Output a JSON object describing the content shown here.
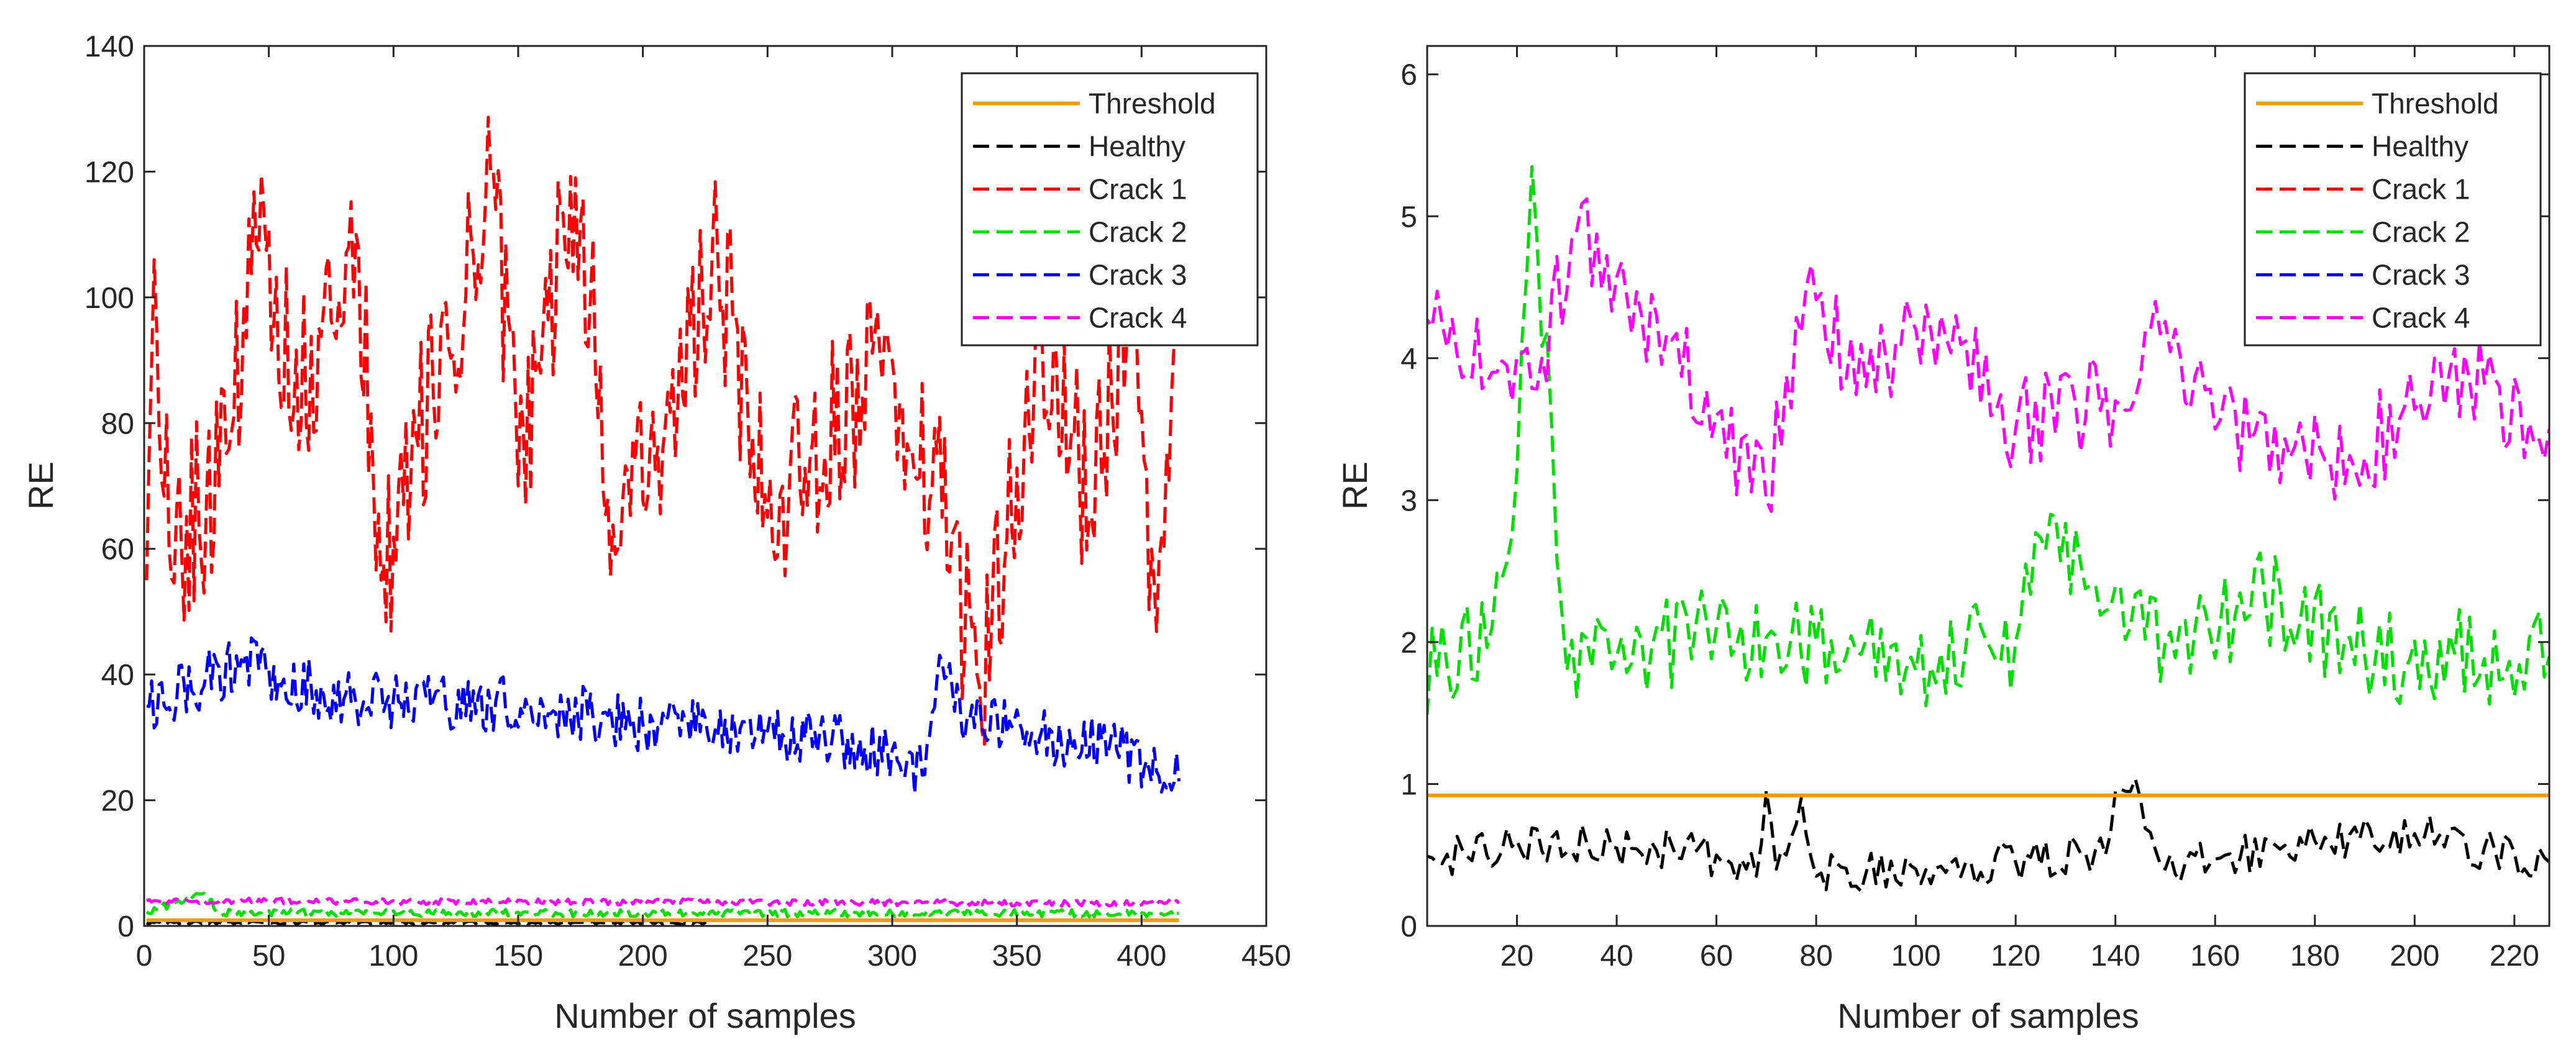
{
  "chart_data": [
    {
      "type": "line",
      "xlabel": "Number of samples",
      "ylabel": "RE",
      "xlim": [
        0,
        450
      ],
      "ylim": [
        0,
        140
      ],
      "xticks": [
        0,
        50,
        100,
        150,
        200,
        250,
        300,
        350,
        400,
        450
      ],
      "yticks": [
        0,
        20,
        40,
        60,
        80,
        100,
        120,
        140
      ],
      "legend_location": "top-right",
      "series": [
        {
          "name": "Threshold",
          "color": "#f39c12",
          "style": "solid",
          "n": 415,
          "x_start": 1,
          "keypoints": [
            [
              1,
              0.92
            ],
            [
              415,
              0.92
            ]
          ],
          "amp": 0,
          "seed": 0
        },
        {
          "name": "Healthy",
          "color": "#000000",
          "style": "dashed",
          "n": 227,
          "x_start": 1,
          "keypoints": [
            [
              1,
              0.5
            ],
            [
              227,
              0.5
            ]
          ],
          "amp": 0.25,
          "seed": 11
        },
        {
          "name": "Crack 1",
          "color": "#ff0000",
          "style": "dashed",
          "n": 415,
          "x_start": 1,
          "keypoints": [
            [
              1,
              55
            ],
            [
              4,
              106
            ],
            [
              10,
              60
            ],
            [
              30,
              70
            ],
            [
              48,
              114
            ],
            [
              60,
              82
            ],
            [
              85,
              110
            ],
            [
              95,
              55
            ],
            [
              140,
              120
            ],
            [
              150,
              70
            ],
            [
              173,
              119
            ],
            [
              190,
              60
            ],
            [
              230,
              107
            ],
            [
              250,
              65
            ],
            [
              300,
              90
            ],
            [
              320,
              65
            ],
            [
              335,
              38
            ],
            [
              360,
              95
            ],
            [
              380,
              65
            ],
            [
              395,
              100
            ],
            [
              405,
              55
            ],
            [
              415,
              95
            ]
          ],
          "amp": 15,
          "seed": 21
        },
        {
          "name": "Crack 2",
          "color": "#00e000",
          "style": "dashed",
          "n": 415,
          "x_start": 1,
          "keypoints": [
            [
              1,
              2.2
            ],
            [
              24,
              5.2
            ],
            [
              30,
              2.1
            ],
            [
              415,
              2.0
            ]
          ],
          "amp": 0.6,
          "seed": 31
        },
        {
          "name": "Crack 3",
          "color": "#0000ff",
          "style": "dashed",
          "n": 415,
          "x_start": 1,
          "keypoints": [
            [
              1,
              35
            ],
            [
              40,
              42
            ],
            [
              80,
              36
            ],
            [
              160,
              35
            ],
            [
              200,
              32
            ],
            [
              250,
              31
            ],
            [
              300,
              28
            ],
            [
              312,
              24
            ],
            [
              320,
              42
            ],
            [
              330,
              33
            ],
            [
              390,
              28
            ],
            [
              415,
              23
            ]
          ],
          "amp": 4.5,
          "seed": 41
        },
        {
          "name": "Crack 4",
          "color": "#ff00ff",
          "style": "dashed",
          "n": 415,
          "x_start": 1,
          "keypoints": [
            [
              1,
              4.0
            ],
            [
              415,
              3.6
            ]
          ],
          "amp": 0.5,
          "seed": 51
        }
      ]
    },
    {
      "type": "line",
      "xlabel": "Number of samples",
      "ylabel": "RE",
      "xlim": [
        2,
        227
      ],
      "ylim": [
        0,
        6.2
      ],
      "xticks": [
        20,
        40,
        60,
        80,
        100,
        120,
        140,
        160,
        180,
        200,
        220
      ],
      "yticks": [
        0,
        1,
        2,
        3,
        4,
        5,
        6
      ],
      "legend_location": "top-right",
      "series": [
        {
          "name": "Threshold",
          "color": "#f39c12",
          "style": "solid",
          "n": 227,
          "x_start": 1,
          "keypoints": [
            [
              1,
              0.92
            ],
            [
              227,
              0.92
            ]
          ],
          "amp": 0,
          "seed": 0
        },
        {
          "name": "Healthy",
          "color": "#000000",
          "style": "dashed",
          "n": 227,
          "x_start": 1,
          "keypoints": [
            [
              1,
              0.45
            ],
            [
              20,
              0.6
            ],
            [
              40,
              0.55
            ],
            [
              60,
              0.5
            ],
            [
              68,
              0.35
            ],
            [
              70,
              0.95
            ],
            [
              72,
              0.4
            ],
            [
              77,
              0.9
            ],
            [
              80,
              0.35
            ],
            [
              100,
              0.4
            ],
            [
              120,
              0.45
            ],
            [
              138,
              0.5
            ],
            [
              140,
              0.95
            ],
            [
              145,
              0.9
            ],
            [
              150,
              0.4
            ],
            [
              180,
              0.6
            ],
            [
              200,
              0.65
            ],
            [
              227,
              0.45
            ]
          ],
          "amp": 0.15,
          "seed": 12
        },
        {
          "name": "Crack 1",
          "color": "#ff0000",
          "style": "dashed",
          "n": 0,
          "x_start": 1,
          "keypoints": [],
          "amp": 0,
          "seed": 0
        },
        {
          "name": "Crack 2",
          "color": "#00e000",
          "style": "dashed",
          "n": 227,
          "x_start": 1,
          "keypoints": [
            [
              1,
              1.8
            ],
            [
              15,
              2.1
            ],
            [
              20,
              3.2
            ],
            [
              23,
              5.35
            ],
            [
              27,
              3.5
            ],
            [
              30,
              1.8
            ],
            [
              40,
              1.9
            ],
            [
              60,
              2.1
            ],
            [
              80,
              2.0
            ],
            [
              100,
              1.8
            ],
            [
              120,
              2.0
            ],
            [
              127,
              2.9
            ],
            [
              135,
              2.4
            ],
            [
              150,
              2.0
            ],
            [
              170,
              2.3
            ],
            [
              190,
              1.9
            ],
            [
              227,
              1.9
            ]
          ],
          "amp": 0.35,
          "seed": 32
        },
        {
          "name": "Crack 3",
          "color": "#0000ff",
          "style": "dashed",
          "n": 0,
          "x_start": 1,
          "keypoints": [],
          "amp": 0,
          "seed": 0
        },
        {
          "name": "Crack 4",
          "color": "#ff00ff",
          "style": "dashed",
          "n": 227,
          "x_start": 1,
          "keypoints": [
            [
              1,
              4.2
            ],
            [
              15,
              3.9
            ],
            [
              25,
              4.0
            ],
            [
              32,
              4.9
            ],
            [
              45,
              4.3
            ],
            [
              60,
              3.6
            ],
            [
              70,
              3.0
            ],
            [
              78,
              4.5
            ],
            [
              90,
              3.8
            ],
            [
              105,
              4.3
            ],
            [
              120,
              3.5
            ],
            [
              140,
              3.7
            ],
            [
              148,
              4.4
            ],
            [
              160,
              3.5
            ],
            [
              175,
              3.3
            ],
            [
              190,
              3.3
            ],
            [
              205,
              4.0
            ],
            [
              227,
              3.5
            ]
          ],
          "amp": 0.35,
          "seed": 52
        }
      ]
    }
  ]
}
